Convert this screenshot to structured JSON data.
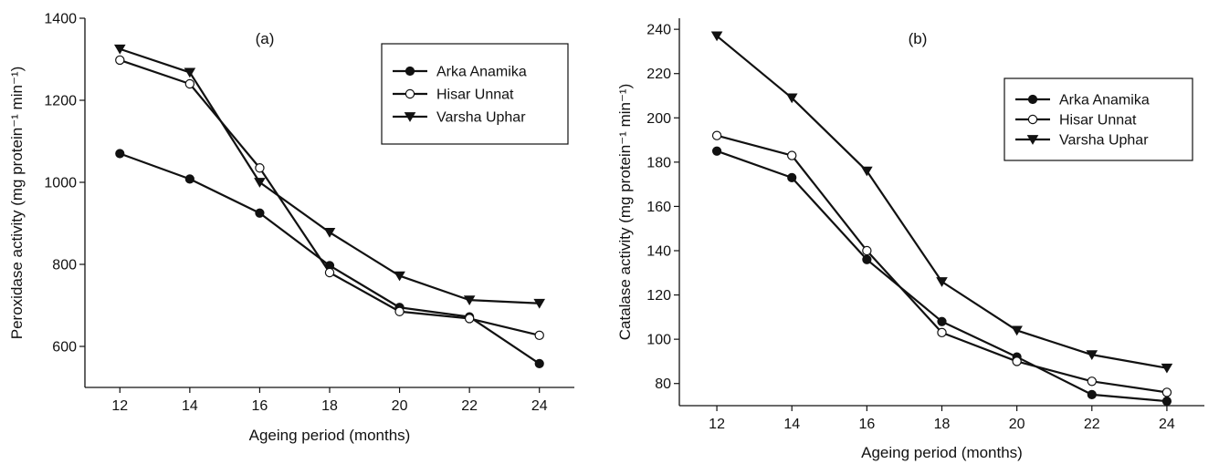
{
  "chart_data": [
    {
      "type": "line",
      "panel_label": "(a)",
      "ylabel": "Peroxidase activity (mg protein⁻¹ min⁻¹)",
      "xlabel": "Ageing period (months)",
      "x": [
        12,
        14,
        16,
        18,
        20,
        22,
        24
      ],
      "xticks": [
        12,
        14,
        16,
        18,
        20,
        22,
        24
      ],
      "yticks": [
        600,
        800,
        1000,
        1200,
        1400
      ],
      "xlim": [
        11,
        25
      ],
      "ylim": [
        500,
        1400
      ],
      "legend_position": "top-right",
      "grid": false,
      "series": [
        {
          "name": "Arka Anamika",
          "marker": "filled-circle",
          "values": [
            1070,
            1008,
            925,
            797,
            695,
            672,
            558
          ]
        },
        {
          "name": "Hisar Unnat",
          "marker": "open-circle",
          "values": [
            1298,
            1240,
            1035,
            780,
            685,
            668,
            627
          ]
        },
        {
          "name": "Varsha Uphar",
          "marker": "filled-triangle-down",
          "values": [
            1325,
            1268,
            1000,
            878,
            772,
            713,
            705
          ]
        }
      ]
    },
    {
      "type": "line",
      "panel_label": "(b)",
      "ylabel": "Catalase activity (mg protein⁻¹ min⁻¹)",
      "xlabel": "Ageing period (months)",
      "x": [
        12,
        14,
        16,
        18,
        20,
        22,
        24
      ],
      "xticks": [
        12,
        14,
        16,
        18,
        20,
        22,
        24
      ],
      "yticks": [
        80,
        100,
        120,
        140,
        160,
        180,
        200,
        220,
        240
      ],
      "xlim": [
        11,
        25
      ],
      "ylim": [
        70,
        245
      ],
      "legend_position": "top-right",
      "grid": false,
      "series": [
        {
          "name": "Arka Anamika",
          "marker": "filled-circle",
          "values": [
            185,
            173,
            136,
            108,
            92,
            75,
            72
          ]
        },
        {
          "name": "Hisar Unnat",
          "marker": "open-circle",
          "values": [
            192,
            183,
            140,
            103,
            90,
            81,
            76
          ]
        },
        {
          "name": "Varsha Uphar",
          "marker": "filled-triangle-down",
          "values": [
            237,
            209,
            176,
            126,
            104,
            93,
            87
          ]
        }
      ]
    }
  ]
}
